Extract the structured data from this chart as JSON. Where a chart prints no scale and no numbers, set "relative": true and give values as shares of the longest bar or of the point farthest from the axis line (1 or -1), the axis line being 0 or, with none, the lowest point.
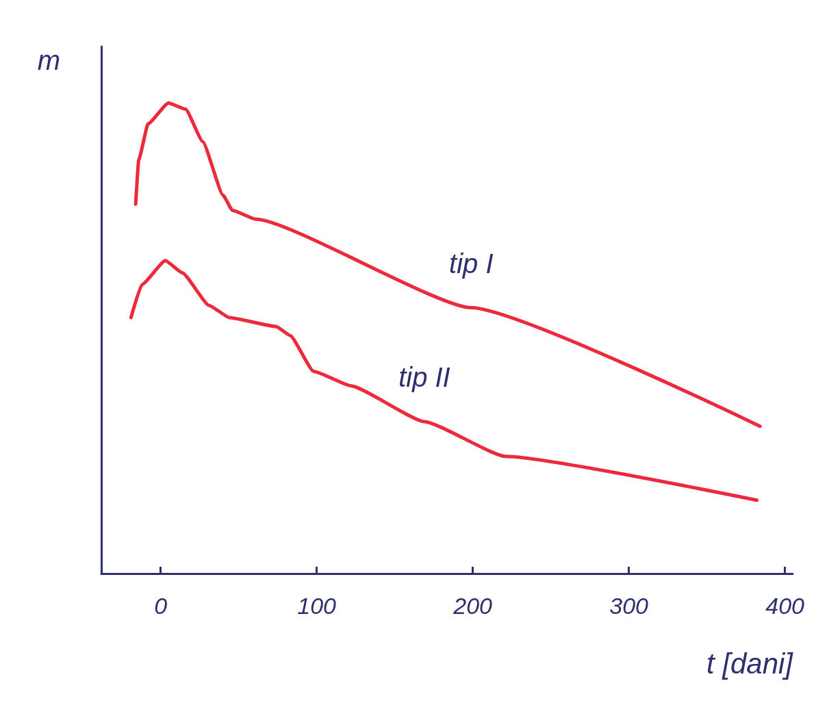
{
  "chart_data": {
    "type": "line",
    "relative": true,
    "xlabel": "t [dani]",
    "ylabel": "m",
    "xlim": [
      -38,
      405
    ],
    "xticks": [
      0,
      100,
      200,
      300,
      400
    ],
    "marker": "none",
    "line_style": "solid",
    "grid": false,
    "legend": false,
    "series": [
      {
        "name": "tip I",
        "color": "#ec2a3c",
        "x": [
          -16,
          -14,
          -8,
          5,
          16,
          27,
          40,
          46,
          61,
          199,
          384
        ],
        "values": [
          0.785,
          0.88,
          0.956,
          1,
          0.987,
          0.918,
          0.804,
          0.772,
          0.753,
          0.565,
          0.313
        ]
      },
      {
        "name": "tip II",
        "color": "#ec2a3c",
        "x": [
          -19,
          -12,
          3,
          14,
          31,
          44,
          74,
          83,
          98,
          122,
          169,
          221,
          382
        ],
        "values": [
          0.544,
          0.614,
          0.665,
          0.639,
          0.57,
          0.544,
          0.525,
          0.506,
          0.43,
          0.399,
          0.323,
          0.249,
          0.156
        ]
      }
    ]
  }
}
